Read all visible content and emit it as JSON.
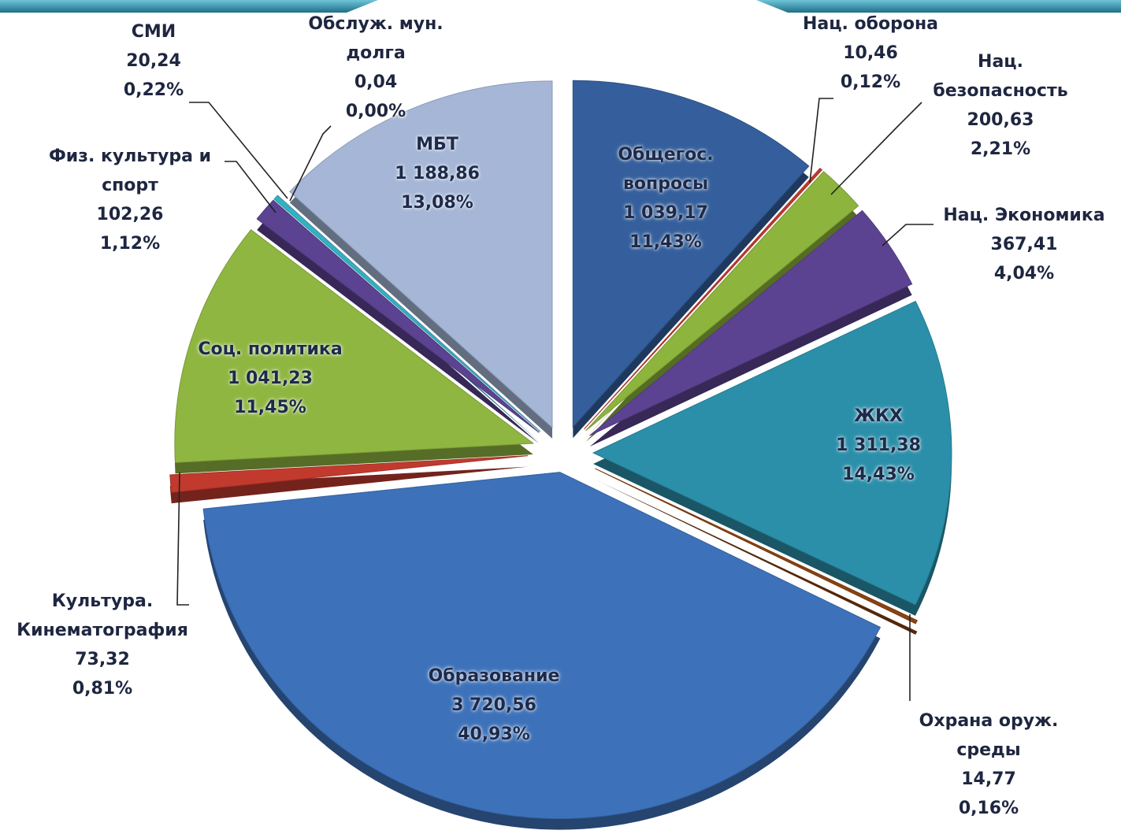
{
  "chart_data": {
    "type": "pie",
    "categories": [
      "Общегос. вопросы",
      "Нац. оборона",
      "Нац. безопасность",
      "Нац. Экономика",
      "ЖКХ",
      "Охрана оруж. среды",
      "Образование",
      "Культура. Кинематография",
      "Соц. политика",
      "Физ. культура и спорт",
      "СМИ",
      "Обслуж. мун. долга",
      "МБТ"
    ],
    "values": [
      1039.17,
      10.46,
      200.63,
      367.41,
      1311.38,
      14.77,
      3720.56,
      73.32,
      1041.23,
      102.26,
      20.24,
      0.04,
      1188.86
    ],
    "value_labels": [
      "1 039,17",
      "10,46",
      "200,63",
      "367,41",
      "1 311,38",
      "14,77",
      "3 720,56",
      "73,32",
      "1 041,23",
      "102,26",
      "20,24",
      "0,04",
      "1 188,86"
    ],
    "percents": [
      11.43,
      0.12,
      2.21,
      4.04,
      14.43,
      0.16,
      40.93,
      0.81,
      11.45,
      1.12,
      0.22,
      0.0,
      13.08
    ],
    "percent_labels": [
      "11,43%",
      "0,12%",
      "2,21%",
      "4,04%",
      "14,43%",
      "0,16%",
      "40,93%",
      "0,81%",
      "11,45%",
      "1,12%",
      "0,22%",
      "0,00%",
      "13,08%"
    ],
    "colors": [
      "#345f9c",
      "#c23a2e",
      "#8db43c",
      "#5c4391",
      "#2b8fa9",
      "#8a4313",
      "#3d72ba",
      "#c23a2e",
      "#8fb641",
      "#5c4391",
      "#2eb3c4",
      "#6fa8c8",
      "#a5b6d6"
    ]
  }
}
